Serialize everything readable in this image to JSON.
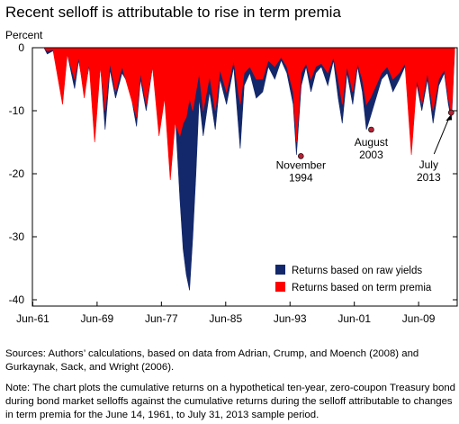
{
  "title": "Recent selloff is attributable to rise in term premia",
  "sources": "Sources: Authors’ calculations, based on data from Adrian, Crump, and Moench (2008) and Gurkaynak, Sack, and Wright (2006).",
  "note": "Note: The chart plots the cumulative returns on a hypothetical ten-year, zero-coupon Treasury bond during bond market selloffs against the cumulative returns during the selloff attributable to changes in term premia for the June 14, 1961, to July 31, 2013 sample period.",
  "colors": {
    "raw": "#13286b",
    "term": "#ff0000",
    "marker": "#b22234"
  },
  "chart_data": {
    "type": "area",
    "ylabel": "Percent",
    "ylim": [
      -41,
      0
    ],
    "xlim": [
      1961.45,
      2014.3
    ],
    "yticks": [
      0,
      -10,
      -20,
      -30,
      -40
    ],
    "ytick_labels": [
      "0",
      "-10",
      "-20",
      "-30",
      "-40"
    ],
    "xticks": [
      1961.5,
      1969.5,
      1977.5,
      1985.5,
      1993.5,
      2001.5,
      2009.5
    ],
    "xtick_labels": [
      "Jun-61",
      "Jun-69",
      "Jun-77",
      "Jun-85",
      "Jun-93",
      "Jun-01",
      "Jun-09"
    ],
    "series": [
      {
        "name": "Returns based on raw yields",
        "color": "#13286b",
        "x": [
          1961.45,
          1962.9,
          1963.3,
          1964.0,
          1965.2,
          1965.8,
          1966.7,
          1967.2,
          1967.9,
          1968.5,
          1969.2,
          1969.9,
          1970.5,
          1971.1,
          1971.8,
          1972.6,
          1973.5,
          1974.4,
          1974.9,
          1975.6,
          1976.4,
          1977.2,
          1977.9,
          1978.6,
          1979.2,
          1979.8,
          1980.2,
          1980.6,
          1981.0,
          1981.4,
          1981.8,
          1982.2,
          1982.7,
          1983.5,
          1984.2,
          1984.8,
          1985.6,
          1986.5,
          1987.3,
          1987.8,
          1988.5,
          1989.3,
          1990.1,
          1990.8,
          1991.6,
          1992.4,
          1993.1,
          1993.9,
          1994.3,
          1994.9,
          1995.5,
          1996.1,
          1996.7,
          1997.4,
          1998.2,
          1998.9,
          1999.5,
          2000.0,
          2000.6,
          2001.3,
          2001.9,
          2002.5,
          2003.0,
          2003.5,
          2004.2,
          2004.9,
          2005.6,
          2006.3,
          2007.1,
          2007.8,
          2008.6,
          2009.3,
          2009.9,
          2010.6,
          2011.3,
          2012.0,
          2012.7,
          2013.2,
          2013.6,
          2014.0
        ],
        "y": [
          0,
          0,
          -1.0,
          -0.5,
          -3.0,
          -1.0,
          -6.5,
          -2.0,
          -7.0,
          -3.0,
          -9.0,
          -2.5,
          -13.0,
          -3.5,
          -8.0,
          -4.0,
          -6.0,
          -12.5,
          -5.0,
          -10.0,
          -3.0,
          -12.0,
          -6.0,
          -17.0,
          -10.0,
          -24.0,
          -32.0,
          -36.0,
          -38.5,
          -30.0,
          -20.0,
          -8.0,
          -14.0,
          -7.0,
          -13.0,
          -5.0,
          -9.0,
          -3.0,
          -16.0,
          -6.0,
          -4.0,
          -8.0,
          -7.0,
          -3.0,
          -5.0,
          -2.0,
          -4.0,
          -9.0,
          -17.0,
          -6.0,
          -3.0,
          -7.0,
          -4.0,
          -3.0,
          -6.0,
          -2.0,
          -8.0,
          -12.0,
          -4.0,
          -9.0,
          -3.0,
          -7.0,
          -13.0,
          -11.0,
          -8.0,
          -5.0,
          -4.0,
          -7.0,
          -5.0,
          -3.0,
          -8.0,
          -6.0,
          -10.0,
          -5.0,
          -12.0,
          -6.0,
          -4.0,
          -9.0,
          -11.5,
          0
        ]
      },
      {
        "name": "Returns based on term premia",
        "color": "#ff0000",
        "x": [
          1961.45,
          1962.9,
          1963.3,
          1964.0,
          1965.2,
          1965.8,
          1966.7,
          1967.2,
          1967.9,
          1968.5,
          1969.2,
          1969.9,
          1970.5,
          1971.1,
          1971.8,
          1972.6,
          1973.5,
          1974.4,
          1974.9,
          1975.6,
          1976.4,
          1977.2,
          1977.9,
          1978.6,
          1979.2,
          1979.8,
          1980.2,
          1980.6,
          1981.0,
          1981.4,
          1981.8,
          1982.2,
          1982.7,
          1983.5,
          1984.2,
          1984.8,
          1985.6,
          1986.5,
          1987.3,
          1987.8,
          1988.5,
          1989.3,
          1990.1,
          1990.8,
          1991.6,
          1992.4,
          1993.1,
          1993.9,
          1994.3,
          1994.9,
          1995.5,
          1996.1,
          1996.7,
          1997.4,
          1998.2,
          1998.9,
          1999.5,
          2000.0,
          2000.6,
          2001.3,
          2001.9,
          2002.5,
          2003.0,
          2003.5,
          2004.2,
          2004.9,
          2005.6,
          2006.3,
          2007.1,
          2007.8,
          2008.6,
          2009.3,
          2009.9,
          2010.6,
          2011.3,
          2012.0,
          2012.7,
          2013.2,
          2013.6,
          2014.0
        ],
        "y": [
          0,
          0,
          -0.5,
          -0.3,
          -9.0,
          -1.0,
          -5.0,
          -1.5,
          -8.0,
          -2.5,
          -15.0,
          -3.0,
          -10.0,
          -2.5,
          -7.0,
          -3.0,
          -7.0,
          -11.0,
          -4.0,
          -9.0,
          -3.0,
          -14.0,
          -8.0,
          -21.0,
          -12.0,
          -14.0,
          -12.0,
          -11.0,
          -8.0,
          -10.0,
          -7.0,
          -4.0,
          -10.0,
          -4.5,
          -10.0,
          -3.5,
          -7.0,
          -2.0,
          -9.0,
          -4.0,
          -3.0,
          -5.0,
          -5.0,
          -2.0,
          -3.0,
          -1.5,
          -3.0,
          -7.0,
          -15.0,
          -4.0,
          -2.5,
          -5.0,
          -3.0,
          -2.5,
          -4.0,
          -1.5,
          -5.0,
          -9.0,
          -3.0,
          -7.0,
          -2.5,
          -5.0,
          -9.0,
          -8.0,
          -6.0,
          -4.0,
          -3.0,
          -5.0,
          -4.0,
          -2.5,
          -17.0,
          -5.0,
          -9.0,
          -4.0,
          -10.0,
          -5.0,
          -3.5,
          -8.0,
          -10.5,
          0
        ]
      }
    ],
    "annotations": [
      {
        "lines": [
          "November",
          "1994"
        ],
        "x": 1994.85,
        "y": -17.2
      },
      {
        "lines": [
          "August",
          "2003"
        ],
        "x": 2003.6,
        "y": -13.0
      },
      {
        "lines": [
          "July",
          "2013"
        ],
        "x": 2013.55,
        "y": -10.3
      }
    ],
    "legend": {
      "position": "bottom-right"
    }
  }
}
